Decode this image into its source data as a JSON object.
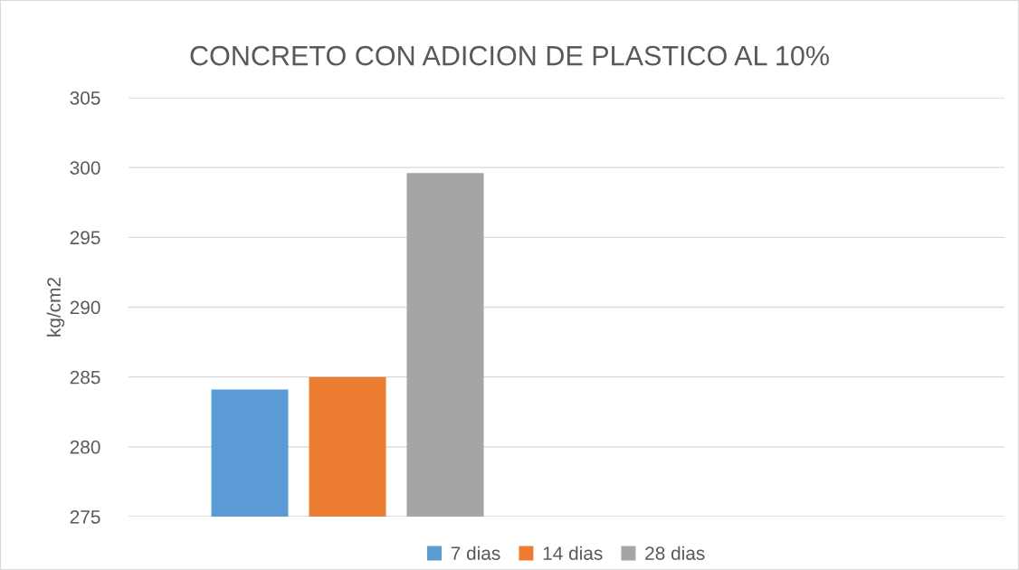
{
  "chart_data": {
    "type": "bar",
    "title": "CONCRETO CON ADICION DE PLASTICO AL 10%",
    "ylabel": "kg/cm2",
    "categories": [
      null,
      null
    ],
    "series": [
      {
        "name": "7 dias",
        "color": "#5b9bd5",
        "values": [
          284.1,
          null
        ]
      },
      {
        "name": "14 dias",
        "color": "#ed7d31",
        "values": [
          285,
          null
        ]
      },
      {
        "name": "28 dias",
        "color": "#a5a5a5",
        "values": [
          299.6,
          null
        ]
      }
    ],
    "ylim": [
      275,
      305
    ],
    "yticks": [
      275,
      280,
      285,
      290,
      295,
      300,
      305
    ],
    "grid": "y",
    "legend": "bottom"
  }
}
